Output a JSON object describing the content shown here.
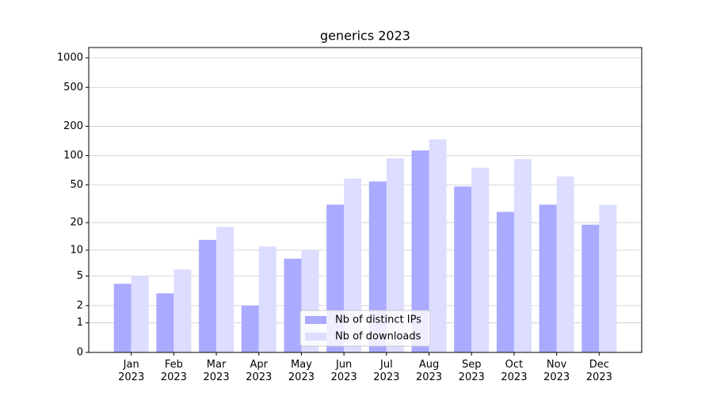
{
  "chart_data": {
    "type": "bar",
    "title": "generics 2023",
    "y_scale": "log1p",
    "categories": [
      "Jan\n2023",
      "Feb\n2023",
      "Mar\n2023",
      "Apr\n2023",
      "May\n2023",
      "Jun\n2023",
      "Jul\n2023",
      "Aug\n2023",
      "Sep\n2023",
      "Oct\n2023",
      "Nov\n2023",
      "Dec\n2023"
    ],
    "series": [
      {
        "name": "Nb of distinct IPs",
        "color": "#aaaaff",
        "values": [
          4,
          3,
          13,
          2,
          8,
          31,
          54,
          113,
          48,
          26,
          31,
          19
        ]
      },
      {
        "name": "Nb of downloads",
        "color": "#ddddff",
        "values": [
          5,
          6,
          18,
          11,
          10,
          58,
          94,
          147,
          75,
          92,
          61,
          31
        ]
      }
    ],
    "ylim": [
      0,
      1273
    ],
    "yticks": [
      0,
      1,
      2,
      5,
      10,
      20,
      50,
      100,
      200,
      500,
      1000
    ],
    "grid": true,
    "legend": "lower center"
  }
}
